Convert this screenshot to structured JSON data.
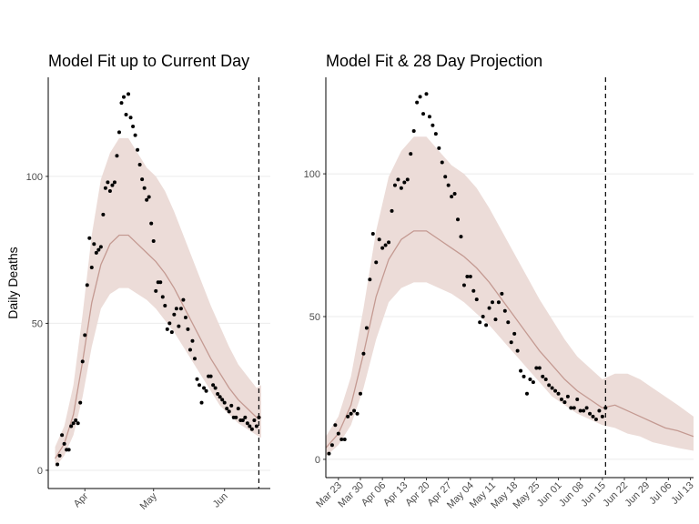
{
  "chart_data": [
    {
      "type": "scatter",
      "title": "Model Fit up to Current Day",
      "ylabel": "Daily Deaths",
      "xlim": [
        "Mar 16",
        "Jun 21"
      ],
      "ylim": [
        -6.2,
        133.7
      ],
      "yticks": [
        0,
        50,
        100
      ],
      "grid": true,
      "xticks": [
        {
          "value": "Apr 01",
          "label": "Apr"
        },
        {
          "value": "May 01",
          "label": "May"
        },
        {
          "value": "Jun 01",
          "label": "Jun"
        }
      ],
      "vline": "Jun 16",
      "points": {
        "color": "#000000",
        "x": [
          "Mar 20",
          "Mar 21",
          "Mar 22",
          "Mar 23",
          "Mar 24",
          "Mar 25",
          "Mar 26",
          "Mar 27",
          "Mar 28",
          "Mar 29",
          "Mar 30",
          "Mar 31",
          "Apr 01",
          "Apr 02",
          "Apr 03",
          "Apr 04",
          "Apr 05",
          "Apr 06",
          "Apr 07",
          "Apr 08",
          "Apr 09",
          "Apr 10",
          "Apr 11",
          "Apr 12",
          "Apr 13",
          "Apr 14",
          "Apr 15",
          "Apr 16",
          "Apr 17",
          "Apr 18",
          "Apr 19",
          "Apr 20",
          "Apr 21",
          "Apr 22",
          "Apr 23",
          "Apr 24",
          "Apr 25",
          "Apr 26",
          "Apr 27",
          "Apr 28",
          "Apr 29",
          "Apr 30",
          "May 01",
          "May 02",
          "May 03",
          "May 04",
          "May 05",
          "May 06",
          "May 07",
          "May 08",
          "May 09",
          "May 10",
          "May 11",
          "May 12",
          "May 13",
          "May 14",
          "May 15",
          "May 16",
          "May 17",
          "May 18",
          "May 19",
          "May 20",
          "May 21",
          "May 22",
          "May 23",
          "May 24",
          "May 25",
          "May 26",
          "May 27",
          "May 28",
          "May 29",
          "May 30",
          "May 31",
          "Jun 01",
          "Jun 02",
          "Jun 03",
          "Jun 04",
          "Jun 05",
          "Jun 06",
          "Jun 07",
          "Jun 08",
          "Jun 09",
          "Jun 10",
          "Jun 11",
          "Jun 12",
          "Jun 13",
          "Jun 14",
          "Jun 15",
          "Jun 16"
        ],
        "values": [
          2,
          5,
          12,
          9,
          7,
          7,
          15,
          16,
          17,
          16,
          23,
          37,
          46,
          63,
          79,
          69,
          77,
          74,
          75,
          76,
          87,
          96,
          98,
          95,
          97,
          98,
          107,
          115,
          125,
          127,
          121,
          128,
          120,
          117,
          114,
          109,
          104,
          99,
          96,
          92,
          93,
          84,
          78,
          61,
          64,
          64,
          59,
          56,
          48,
          50,
          47,
          53,
          55,
          49,
          55,
          58,
          52,
          48,
          41,
          44,
          38,
          31,
          29,
          23,
          28,
          27,
          32,
          32,
          29,
          28,
          26,
          25,
          24,
          23,
          21,
          20,
          22,
          18,
          18,
          21,
          17,
          17,
          18,
          16,
          15,
          14,
          17,
          15,
          18
        ]
      },
      "model": {
        "color": "#c49a92",
        "fill": "#ecdcd8",
        "x": [
          "Mar 19",
          "Mar 23",
          "Mar 27",
          "Mar 31",
          "Apr 04",
          "Apr 08",
          "Apr 12",
          "Apr 16",
          "Apr 20",
          "Apr 24",
          "Apr 28",
          "May 02",
          "May 06",
          "May 10",
          "May 14",
          "May 18",
          "May 22",
          "May 26",
          "May 30",
          "Jun 03",
          "Jun 07",
          "Jun 11",
          "Jun 15",
          "Jun 17"
        ],
        "values": [
          4,
          9,
          19,
          37,
          57,
          70,
          77,
          80,
          80,
          77,
          74,
          71,
          67,
          62,
          56,
          50,
          44,
          38,
          33,
          28,
          24,
          21,
          18,
          18
        ],
        "lower": [
          1,
          5,
          12,
          25,
          42,
          55,
          60,
          62,
          62,
          60,
          58,
          55,
          51,
          47,
          42,
          37,
          32,
          27,
          22,
          19,
          16,
          14,
          12,
          11
        ],
        "upper": [
          8,
          15,
          29,
          53,
          80,
          99,
          108,
          113,
          113,
          108,
          103,
          100,
          95,
          88,
          80,
          72,
          64,
          56,
          49,
          42,
          36,
          32,
          28,
          29
        ]
      }
    },
    {
      "type": "scatter",
      "title": "Model Fit & 28 Day Projection",
      "xlim": [
        "Mar 19",
        "Jul 14"
      ],
      "ylim": [
        -6.4,
        133.8
      ],
      "yticks": [
        0,
        50,
        100
      ],
      "grid": true,
      "xticks": [
        "Mar 23",
        "Mar 30",
        "Apr 06",
        "Apr 13",
        "Apr 20",
        "Apr 27",
        "May 04",
        "May 11",
        "May 18",
        "May 25",
        "Jun 01",
        "Jun 08",
        "Jun 15",
        "Jun 22",
        "Jun 29",
        "Jul 06",
        "Jul 13"
      ],
      "vline": "Jun 16",
      "points": {
        "color": "#000000",
        "x": [
          "Mar 20",
          "Mar 21",
          "Mar 22",
          "Mar 23",
          "Mar 24",
          "Mar 25",
          "Mar 26",
          "Mar 27",
          "Mar 28",
          "Mar 29",
          "Mar 30",
          "Mar 31",
          "Apr 01",
          "Apr 02",
          "Apr 03",
          "Apr 04",
          "Apr 05",
          "Apr 06",
          "Apr 07",
          "Apr 08",
          "Apr 09",
          "Apr 10",
          "Apr 11",
          "Apr 12",
          "Apr 13",
          "Apr 14",
          "Apr 15",
          "Apr 16",
          "Apr 17",
          "Apr 18",
          "Apr 19",
          "Apr 20",
          "Apr 21",
          "Apr 22",
          "Apr 23",
          "Apr 24",
          "Apr 25",
          "Apr 26",
          "Apr 27",
          "Apr 28",
          "Apr 29",
          "Apr 30",
          "May 01",
          "May 02",
          "May 03",
          "May 04",
          "May 05",
          "May 06",
          "May 07",
          "May 08",
          "May 09",
          "May 10",
          "May 11",
          "May 12",
          "May 13",
          "May 14",
          "May 15",
          "May 16",
          "May 17",
          "May 18",
          "May 19",
          "May 20",
          "May 21",
          "May 22",
          "May 23",
          "May 24",
          "May 25",
          "May 26",
          "May 27",
          "May 28",
          "May 29",
          "May 30",
          "May 31",
          "Jun 01",
          "Jun 02",
          "Jun 03",
          "Jun 04",
          "Jun 05",
          "Jun 06",
          "Jun 07",
          "Jun 08",
          "Jun 09",
          "Jun 10",
          "Jun 11",
          "Jun 12",
          "Jun 13",
          "Jun 14",
          "Jun 15",
          "Jun 16"
        ],
        "values": [
          2,
          5,
          12,
          9,
          7,
          7,
          15,
          16,
          17,
          16,
          23,
          37,
          46,
          63,
          79,
          69,
          77,
          74,
          75,
          76,
          87,
          96,
          98,
          95,
          97,
          98,
          107,
          115,
          125,
          127,
          121,
          128,
          120,
          117,
          114,
          109,
          104,
          99,
          96,
          92,
          93,
          84,
          78,
          61,
          64,
          64,
          59,
          56,
          48,
          50,
          47,
          53,
          55,
          49,
          55,
          58,
          52,
          48,
          41,
          44,
          38,
          31,
          29,
          23,
          28,
          27,
          32,
          32,
          29,
          28,
          26,
          25,
          24,
          23,
          21,
          20,
          22,
          18,
          18,
          21,
          17,
          17,
          18,
          16,
          15,
          14,
          17,
          15,
          18
        ]
      },
      "model": {
        "color": "#c49a92",
        "fill": "#ecdcd8",
        "x": [
          "Mar 19",
          "Mar 23",
          "Mar 27",
          "Mar 31",
          "Apr 04",
          "Apr 08",
          "Apr 12",
          "Apr 16",
          "Apr 20",
          "Apr 24",
          "Apr 28",
          "May 02",
          "May 06",
          "May 10",
          "May 14",
          "May 18",
          "May 22",
          "May 26",
          "May 30",
          "Jun 03",
          "Jun 07",
          "Jun 11",
          "Jun 15",
          "Jun 19",
          "Jun 23",
          "Jun 27",
          "Jul 01",
          "Jul 05",
          "Jul 09",
          "Jul 14"
        ],
        "values": [
          4,
          9,
          19,
          37,
          57,
          70,
          77,
          80,
          80,
          77,
          74,
          71,
          67,
          62,
          56,
          50,
          44,
          38,
          33,
          28,
          24,
          21,
          18,
          19,
          17,
          15,
          13,
          11,
          10,
          8
        ],
        "lower": [
          1,
          5,
          12,
          25,
          42,
          55,
          60,
          62,
          62,
          60,
          58,
          55,
          51,
          47,
          42,
          37,
          32,
          27,
          22,
          19,
          16,
          14,
          12,
          11,
          9,
          8,
          6,
          5,
          4,
          3
        ],
        "upper": [
          8,
          15,
          29,
          53,
          80,
          99,
          108,
          113,
          113,
          108,
          103,
          100,
          95,
          88,
          80,
          72,
          64,
          56,
          49,
          42,
          36,
          32,
          28,
          30,
          30,
          28,
          25,
          22,
          19,
          15
        ]
      }
    }
  ]
}
